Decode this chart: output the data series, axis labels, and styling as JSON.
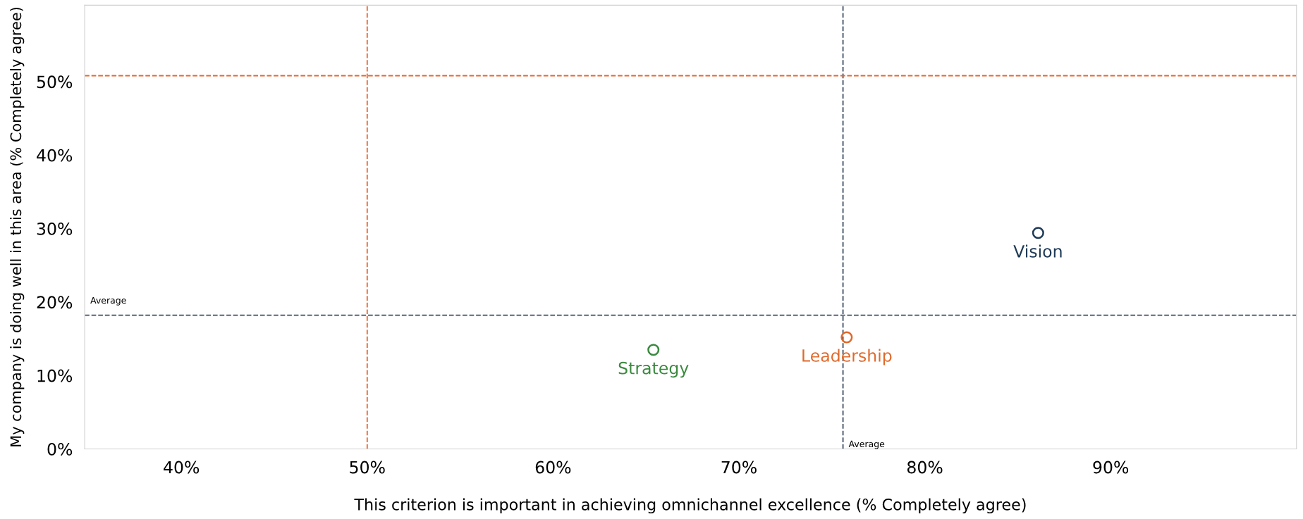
{
  "chart_data": {
    "type": "scatter",
    "xlabel": "This criterion is important in achieving omnichannel excellence (% Completely agree)",
    "ylabel": "My company is doing well in this area (% Completely agree)",
    "series": [
      {
        "name": "Vision",
        "color": "#1f3b57",
        "x": [
          86.1
        ],
        "values": [
          29.4
        ]
      },
      {
        "name": "Leadership",
        "color": "#e06a2c",
        "x": [
          75.8
        ],
        "values": [
          15.2
        ]
      },
      {
        "name": "Strategy",
        "color": "#3a8a3f",
        "x": [
          65.4
        ],
        "values": [
          13.5
        ]
      }
    ],
    "marker": "circle",
    "xlim": [
      34.8,
      100
    ],
    "ylim": [
      0,
      60.4
    ],
    "xticks": [
      {
        "value": 40,
        "label": "40%"
      },
      {
        "value": 50,
        "label": "50%"
      },
      {
        "value": 60,
        "label": "60%"
      },
      {
        "value": 70,
        "label": "70%"
      },
      {
        "value": 80,
        "label": "80%"
      },
      {
        "value": 90,
        "label": "90%"
      }
    ],
    "yticks": [
      {
        "value": 0,
        "label": "0%"
      },
      {
        "value": 10,
        "label": "10%"
      },
      {
        "value": 20,
        "label": "20%"
      },
      {
        "value": 30,
        "label": "30%"
      },
      {
        "value": 40,
        "label": "40%"
      },
      {
        "value": 50,
        "label": "50%"
      }
    ],
    "ref_lines": [
      {
        "axis": "x",
        "value": 75.6,
        "label": "Average",
        "color": "#3d4f63",
        "line_style": "dashed"
      },
      {
        "axis": "y",
        "value": 18.2,
        "label": "Average",
        "color": "#3d4f63",
        "line_style": "dashed"
      },
      {
        "axis": "x",
        "value": 50,
        "color": "#e8642a",
        "line_style": "dashed"
      },
      {
        "axis": "y",
        "value": 50.8,
        "color": "#e8642a",
        "line_style": "dashed"
      }
    ],
    "grid": false,
    "legend": false
  }
}
